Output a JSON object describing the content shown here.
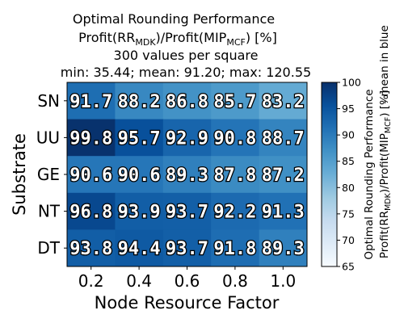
{
  "chart_data": {
    "type": "heatmap",
    "title_lines": {
      "line1": "Optimal Rounding Performance",
      "line2": {
        "pre": "Profit(RR",
        "sub1": "MDK",
        "mid": ")/Profit(MIP",
        "sub2": "MCF",
        "post": ") [%]"
      },
      "line3": "300 values per square",
      "line4": "min: 35.44; mean: 91.20; max: 120.55"
    },
    "xlabel": "Node Resource Factor",
    "ylabel": "Substrate",
    "x_categories": [
      "0.2",
      "0.4",
      "0.6",
      "0.8",
      "1.0"
    ],
    "y_categories": [
      "SN",
      "UU",
      "GE",
      "NT",
      "DT"
    ],
    "values": [
      [
        91.7,
        88.2,
        86.8,
        85.7,
        83.2
      ],
      [
        99.8,
        95.7,
        92.9,
        90.8,
        88.7
      ],
      [
        90.6,
        90.6,
        89.3,
        87.8,
        87.2
      ],
      [
        96.8,
        93.9,
        93.7,
        92.2,
        91.3
      ],
      [
        93.8,
        94.4,
        93.7,
        91.8,
        89.3
      ]
    ],
    "cell_labels": [
      [
        "91.7",
        "88.2",
        "86.8",
        "85.7",
        "83.2"
      ],
      [
        "99.8",
        "95.7",
        "92.9",
        "90.8",
        "88.7"
      ],
      [
        "90.6",
        "90.6",
        "89.3",
        "87.8",
        "87.2"
      ],
      [
        "96.8",
        "93.9",
        "93.7",
        "92.2",
        "91.3"
      ],
      [
        "93.8",
        "94.4",
        "93.7",
        "91.8",
        "89.3"
      ]
    ],
    "colorbar": {
      "min": 65,
      "max": 100,
      "ticks": [
        "65",
        "70",
        "75",
        "80",
        "85",
        "90",
        "95",
        "100"
      ],
      "colormap": "Blues",
      "label_line1": "Optimal Rounding Performance",
      "label_line2": {
        "pre": "Profit(RR",
        "sub1": "MDK",
        "mid": ")/Profit(MIP",
        "sub2": "MCF",
        "post": ") [%]"
      },
      "side_note": "- mean in blue"
    }
  }
}
